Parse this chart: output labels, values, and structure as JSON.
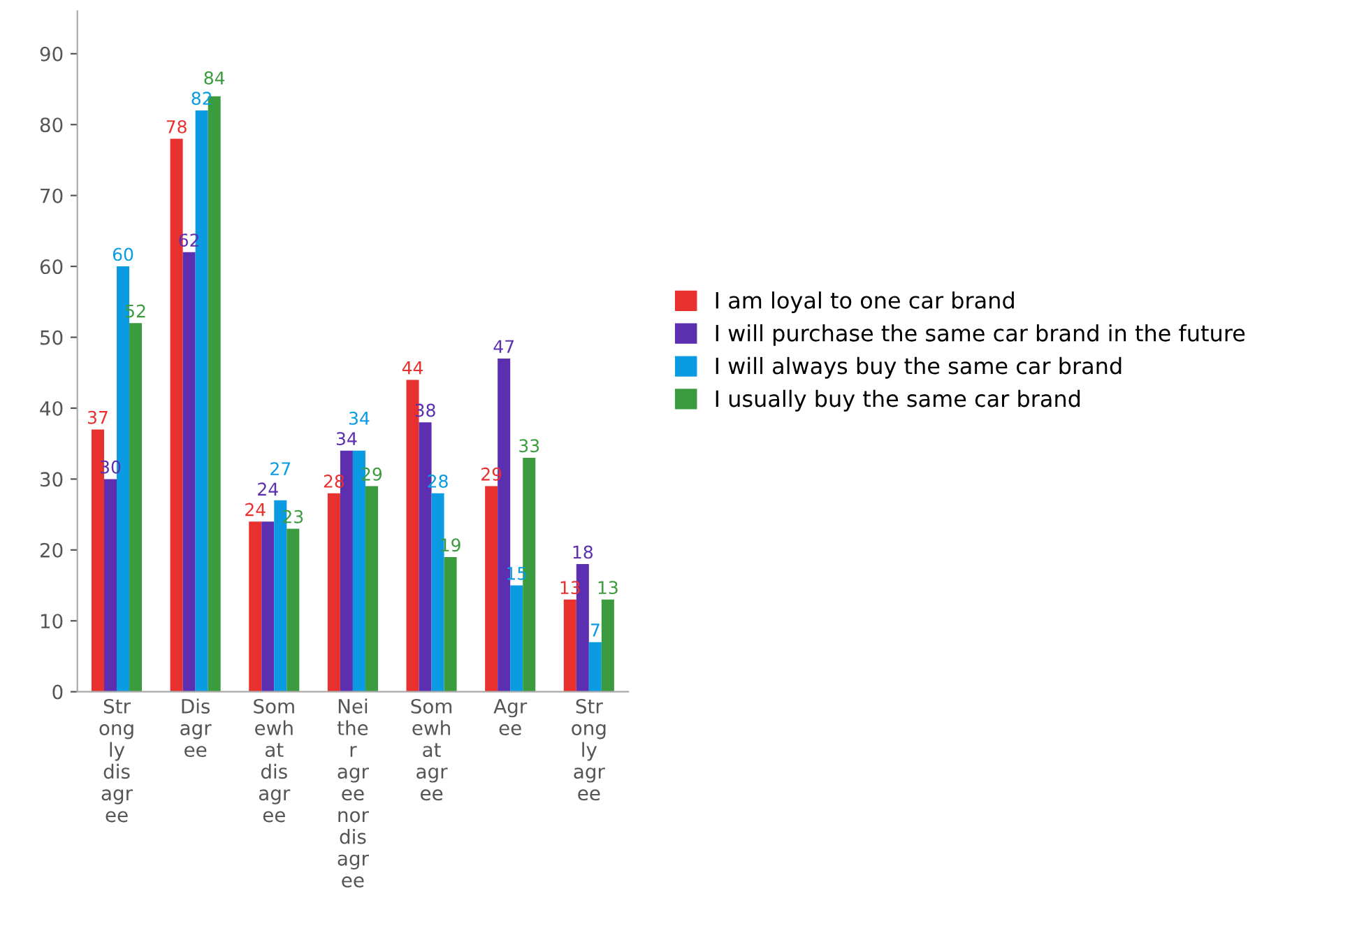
{
  "chart_data": {
    "type": "bar",
    "categories": [
      "Strongly disagree",
      "Disagree",
      "Somewhat disagree",
      "Neither agree nor disagree",
      "Somewhat agree",
      "Agree",
      "Strongly agree"
    ],
    "series": [
      {
        "name": "I am loyal to one car brand",
        "color": "#e8312f",
        "values": [
          37,
          78,
          24,
          28,
          44,
          29,
          13
        ]
      },
      {
        "name": "I will purchase the same car brand in the future",
        "color": "#5b2fb0",
        "values": [
          30,
          62,
          24,
          34,
          38,
          47,
          18
        ]
      },
      {
        "name": "I will always buy the same car brand",
        "color": "#0a9be3",
        "values": [
          60,
          82,
          27,
          34,
          28,
          15,
          7
        ]
      },
      {
        "name": "I usually buy the same car brand",
        "color": "#3b9b3f",
        "values": [
          52,
          84,
          23,
          29,
          19,
          33,
          13
        ]
      }
    ],
    "ylim": [
      0,
      96
    ],
    "yticks": [
      0,
      10,
      20,
      30,
      40,
      50,
      60,
      70,
      80,
      90
    ],
    "data_labels": true,
    "grid": false,
    "legend": "right"
  }
}
